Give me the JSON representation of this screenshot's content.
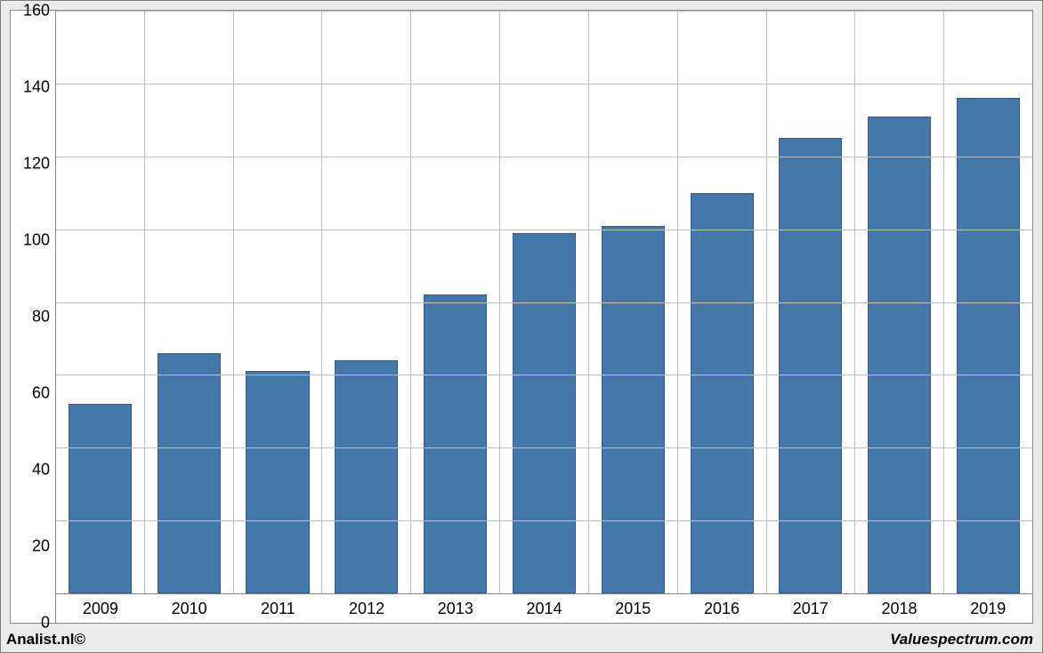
{
  "chart": {
    "type": "bar",
    "categories": [
      "2009",
      "2010",
      "2011",
      "2012",
      "2013",
      "2014",
      "2015",
      "2016",
      "2017",
      "2018",
      "2019"
    ],
    "values": [
      52,
      66,
      61,
      64,
      82,
      99,
      101,
      110,
      125,
      131,
      136
    ],
    "bar_color": "#4477aa",
    "bar_border_color": "#3a5a86",
    "ylim_min": 0,
    "ylim_max": 160,
    "ytick_step": 20,
    "y_ticks": [
      0,
      20,
      40,
      60,
      80,
      100,
      120,
      140,
      160
    ],
    "grid_color": "#c0c0c0",
    "axis_color": "#888888",
    "plot_background": "#ffffff",
    "outer_background": "#ebebeb",
    "bar_width_ratio": 0.72,
    "label_fontsize": 18,
    "label_color": "#000000"
  },
  "footer": {
    "left": "Analist.nl©",
    "right": "Valuespectrum.com"
  }
}
